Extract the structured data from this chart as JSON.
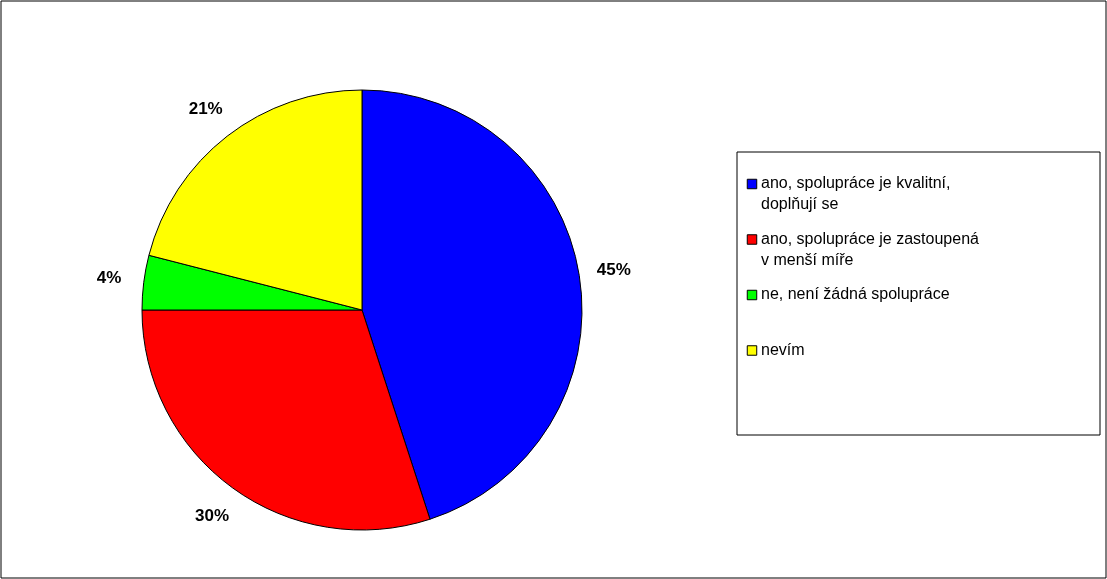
{
  "chart_data": {
    "type": "pie",
    "categories": [
      "ano, spolupráce je kvalitní, doplňují se",
      "ano, spolupráce je zastoupená v menší míře",
      "ne, není žádná spolupráce",
      "nevím"
    ],
    "values": [
      45,
      30,
      4,
      21
    ],
    "colors": [
      "#0000ff",
      "#ff0000",
      "#00ff00",
      "#ffff00"
    ],
    "value_labels": [
      "45%",
      "30%",
      "4%",
      "21%"
    ],
    "legend": "right"
  }
}
